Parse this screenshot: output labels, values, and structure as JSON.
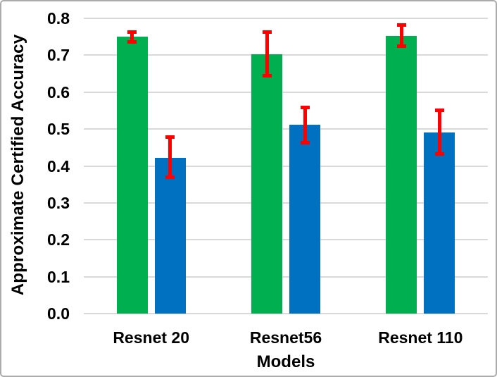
{
  "chart_data": {
    "type": "bar",
    "title": "",
    "xlabel": "Models",
    "ylabel": "Approximate Certified Accuracy",
    "categories": [
      "Resnet 20",
      "Resnet56",
      "Resnet 110"
    ],
    "series": [
      {
        "name": "green",
        "color": "#00B050",
        "values": [
          0.75,
          0.703,
          0.753
        ],
        "error_low": [
          0.732,
          0.639,
          0.72
        ],
        "error_high": [
          0.768,
          0.768,
          0.787
        ]
      },
      {
        "name": "blue",
        "color": "#0070C0",
        "values": [
          0.422,
          0.511,
          0.49
        ],
        "error_low": [
          0.364,
          0.458,
          0.428
        ],
        "error_high": [
          0.483,
          0.563,
          0.555
        ]
      }
    ],
    "error_bar_color": "#FF0000",
    "ylim": [
      0.0,
      0.8
    ],
    "yticks": [
      0.0,
      0.1,
      0.2,
      0.3,
      0.4,
      0.5,
      0.6,
      0.7,
      0.8
    ],
    "ytick_labels": [
      "0.0",
      "0.1",
      "0.2",
      "0.3",
      "0.4",
      "0.5",
      "0.6",
      "0.7",
      "0.8"
    ],
    "grid": true,
    "gridline_color": "#D9D9D9",
    "legend": "none",
    "background_color": "#FFFFFF"
  }
}
